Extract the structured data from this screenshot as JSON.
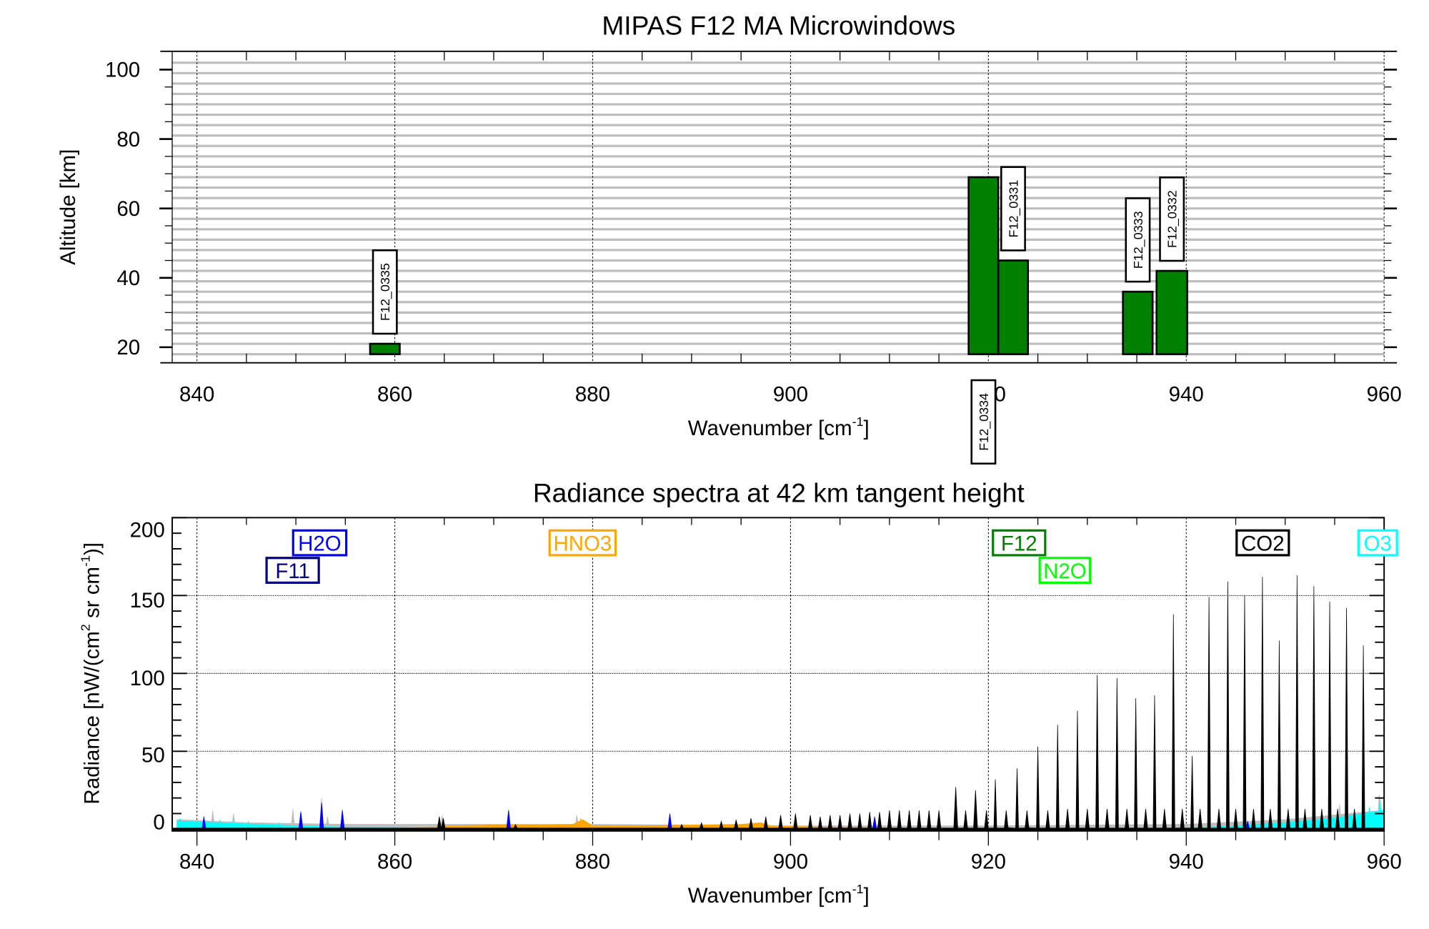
{
  "chart_data": [
    {
      "type": "bar",
      "title": "MIPAS F12 MA Microwindows",
      "xlabel": "Wavenumber [cm",
      "xlabel_sup": "-1",
      "xlabel_end": "]",
      "ylabel": "Altitude [km]",
      "xlim": [
        837.5,
        960
      ],
      "ylim": [
        15,
        105
      ],
      "xticks": [
        840,
        860,
        880,
        900,
        920,
        940,
        960
      ],
      "xtick_labels": [
        "840",
        "860",
        "880",
        "900",
        "920",
        "940",
        "960"
      ],
      "yticks": [
        20,
        40,
        60,
        80,
        100
      ],
      "ytick_labels": [
        "20",
        "40",
        "60",
        "80",
        "100"
      ],
      "grid": "vertical dotted at major x ticks; grey horizontal lines at tangent altitudes",
      "tangent_altitudes_km": [
        18,
        21,
        24,
        27,
        30,
        33,
        36,
        39,
        42,
        45,
        48,
        51,
        54,
        57,
        60,
        63,
        66,
        69,
        72,
        75,
        78,
        81,
        84,
        87,
        90,
        93,
        96,
        99,
        102
      ],
      "bar_color": "#008000",
      "grid_color": "#bebebe",
      "microwindows": [
        {
          "name": "F12_0335",
          "wn_start": 857.5,
          "wn_end": 860.5,
          "alt_bottom": 18,
          "alt_top": 21
        },
        {
          "name": "F12_0334",
          "wn_start": 918.0,
          "wn_end": 921.0,
          "alt_bottom": 18,
          "alt_top": 69
        },
        {
          "name": "F12_0331",
          "wn_start": 921.0,
          "wn_end": 924.0,
          "alt_bottom": 18,
          "alt_top": 45
        },
        {
          "name": "F12_0333",
          "wn_start": 933.6,
          "wn_end": 936.6,
          "alt_bottom": 18,
          "alt_top": 36
        },
        {
          "name": "F12_0332",
          "wn_start": 937.0,
          "wn_end": 940.1,
          "alt_bottom": 18,
          "alt_top": 42
        }
      ]
    },
    {
      "type": "line",
      "title": "Radiance spectra at 42 km tangent height",
      "xlabel": "Wavenumber [cm",
      "xlabel_sup": "-1",
      "xlabel_end": "]",
      "ylabel": "Radiance [nW/(cm",
      "ylabel_sup1": "2",
      "ylabel_mid": " sr cm",
      "ylabel_sup2": "-1",
      "ylabel_end": ")]",
      "xlim": [
        837.5,
        960
      ],
      "ylim": [
        0,
        200
      ],
      "xticks": [
        840,
        860,
        880,
        900,
        920,
        940,
        960
      ],
      "xtick_labels": [
        "840",
        "860",
        "880",
        "900",
        "920",
        "940",
        "960"
      ],
      "yticks": [
        0,
        50,
        100,
        150,
        200
      ],
      "ytick_labels": [
        "0",
        "50",
        "100",
        "150",
        "200"
      ],
      "grid": "dotted at major ticks",
      "legend": [
        {
          "name": "H2O",
          "color": "#0000ff"
        },
        {
          "name": "F11",
          "color": "#000080"
        },
        {
          "name": "HNO3",
          "color": "#ffa500"
        },
        {
          "name": "F12",
          "color": "#008000"
        },
        {
          "name": "N2O",
          "color": "#00ff00"
        },
        {
          "name": "CO2",
          "color": "#000000"
        },
        {
          "name": "O3",
          "color": "#00ffff"
        }
      ],
      "series": [
        {
          "name": "total",
          "color": "#bebebe",
          "continuum": [
            [
              838,
              6
            ],
            [
              845,
              4
            ],
            [
              855,
              3
            ],
            [
              865,
              3
            ],
            [
              880,
              3
            ],
            [
              900,
              2
            ],
            [
              920,
              2
            ],
            [
              940,
              3
            ],
            [
              950,
              6
            ],
            [
              960,
              12
            ]
          ],
          "lines": [
            [
              841.6,
              12
            ],
            [
              843.7,
              10
            ],
            [
              849.7,
              13
            ],
            [
              850.5,
              12
            ],
            [
              852.6,
              20
            ],
            [
              853.2,
              8
            ],
            [
              854.7,
              13
            ],
            [
              864.8,
              9
            ],
            [
              871.5,
              13
            ],
            [
              878.4,
              9
            ],
            [
              887.8,
              10
            ],
            [
              955.5,
              16
            ],
            [
              959.5,
              22
            ]
          ]
        },
        {
          "name": "O3",
          "color": "#00ffff",
          "continuum": [
            [
              838,
              5
            ],
            [
              842,
              4
            ],
            [
              846,
              3
            ],
            [
              850,
              2
            ],
            [
              856,
              1
            ],
            [
              862,
              0.5
            ],
            [
              940,
              0.5
            ],
            [
              945,
              2
            ],
            [
              950,
              4
            ],
            [
              955,
              7
            ],
            [
              958,
              10
            ],
            [
              960,
              12
            ]
          ],
          "lines": [
            [
              838.3,
              7
            ],
            [
              839.5,
              6
            ],
            [
              840.8,
              5
            ],
            [
              842.3,
              6
            ],
            [
              843.5,
              5
            ],
            [
              845.2,
              5
            ],
            [
              846.6,
              4
            ],
            [
              848.3,
              4
            ],
            [
              958.5,
              14
            ],
            [
              959.6,
              20
            ]
          ]
        },
        {
          "name": "HNO3",
          "color": "#ffa500",
          "continuum": [
            [
              862,
              0.5
            ],
            [
              866,
              2
            ],
            [
              870,
              2.5
            ],
            [
              875,
              2.5
            ],
            [
              878,
              3
            ],
            [
              879,
              6
            ],
            [
              880,
              2
            ],
            [
              885,
              2
            ],
            [
              890,
              2.5
            ],
            [
              895,
              3
            ],
            [
              897,
              4
            ],
            [
              898,
              2
            ],
            [
              905,
              1
            ],
            [
              912,
              0.5
            ]
          ],
          "lines": [
            [
              878.8,
              7
            ]
          ]
        },
        {
          "name": "H2O",
          "color": "#0000ff",
          "continuum": [],
          "lines": [
            [
              840.7,
              8
            ],
            [
              850.5,
              11
            ],
            [
              852.6,
              17
            ],
            [
              854.7,
              12
            ],
            [
              871.5,
              12
            ],
            [
              887.8,
              10
            ],
            [
              908.5,
              8
            ],
            [
              946.2,
              5
            ]
          ]
        },
        {
          "name": "F12",
          "color": "#008000",
          "continuum": [
            [
              921,
              0
            ],
            [
              922,
              1
            ],
            [
              923,
              0
            ],
            [
              924,
              1
            ],
            [
              925,
              0
            ]
          ],
          "lines": []
        },
        {
          "name": "CO2",
          "color": "#000000",
          "continuum": [
            [
              838,
              0.5
            ],
            [
              960,
              0.5
            ]
          ],
          "lines": [
            [
              864.5,
              8
            ],
            [
              864.9,
              7
            ],
            [
              872.2,
              3
            ],
            [
              889,
              3
            ],
            [
              891,
              4
            ],
            [
              893,
              5
            ],
            [
              894.5,
              6
            ],
            [
              896,
              7
            ],
            [
              897.5,
              8
            ],
            [
              899,
              9
            ],
            [
              900.5,
              10
            ],
            [
              902,
              9
            ],
            [
              903,
              8
            ],
            [
              904,
              9
            ],
            [
              905,
              9
            ],
            [
              906,
              10
            ],
            [
              907,
              10
            ],
            [
              908,
              11
            ],
            [
              909,
              11
            ],
            [
              910,
              12
            ],
            [
              911,
              12
            ],
            [
              912,
              12
            ],
            [
              913,
              12
            ],
            [
              914,
              12
            ],
            [
              915,
              12
            ],
            [
              916.7,
              27
            ],
            [
              917.7,
              12
            ],
            [
              918.7,
              25
            ],
            [
              919.8,
              12
            ],
            [
              920.7,
              32
            ],
            [
              921.8,
              12
            ],
            [
              922.9,
              39
            ],
            [
              923.9,
              12
            ],
            [
              925.0,
              53
            ],
            [
              926.0,
              12
            ],
            [
              927.0,
              67
            ],
            [
              928.0,
              13
            ],
            [
              929.0,
              76
            ],
            [
              930.0,
              13
            ],
            [
              931.0,
              99
            ],
            [
              932.0,
              13
            ],
            [
              933.0,
              97
            ],
            [
              934.0,
              13
            ],
            [
              934.9,
              84
            ],
            [
              935.9,
              13
            ],
            [
              936.8,
              86
            ],
            [
              937.8,
              13
            ],
            [
              938.7,
              138
            ],
            [
              939.6,
              13
            ],
            [
              940.6,
              47
            ],
            [
              941.4,
              13
            ],
            [
              942.3,
              149
            ],
            [
              943.3,
              13
            ],
            [
              944.2,
              159
            ],
            [
              945.0,
              13
            ],
            [
              945.9,
              150
            ],
            [
              946.8,
              13
            ],
            [
              947.7,
              162
            ],
            [
              948.5,
              13
            ],
            [
              949.4,
              121
            ],
            [
              950.3,
              13
            ],
            [
              951.2,
              163
            ],
            [
              952.0,
              13
            ],
            [
              952.9,
              156
            ],
            [
              953.7,
              13
            ],
            [
              954.5,
              146
            ],
            [
              955.3,
              13
            ],
            [
              956.2,
              142
            ],
            [
              957.0,
              13
            ],
            [
              957.9,
              118
            ]
          ]
        }
      ]
    }
  ]
}
